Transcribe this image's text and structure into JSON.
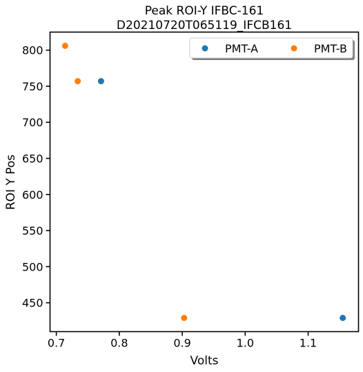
{
  "chart_data": {
    "type": "scatter",
    "title": "Peak ROI-Y IFBC-161",
    "subtitle": "D20210720T065119_IFCB161",
    "xlabel": "Volts",
    "ylabel": "ROI Y Pos",
    "xlim": [
      0.69,
      1.18
    ],
    "ylim": [
      410,
      825
    ],
    "xticks": [
      0.7,
      0.8,
      0.9,
      1.0,
      1.1
    ],
    "xtick_labels": [
      "0.7",
      "0.8",
      "0.9",
      "1.0",
      "1.1"
    ],
    "yticks": [
      450,
      500,
      550,
      600,
      650,
      700,
      750,
      800
    ],
    "ytick_labels": [
      "450",
      "500",
      "550",
      "600",
      "650",
      "700",
      "750",
      "800"
    ],
    "grid": false,
    "legend": {
      "placement": "top-right",
      "columns": 2,
      "shadow": true
    },
    "series": [
      {
        "name": "PMT-A",
        "color": "#1f77b4",
        "points": [
          [
            0.771,
            757
          ],
          [
            1.155,
            429
          ]
        ]
      },
      {
        "name": "PMT-B",
        "color": "#ff7f0e",
        "points": [
          [
            0.714,
            806
          ],
          [
            0.734,
            757
          ],
          [
            0.903,
            429
          ]
        ]
      }
    ]
  }
}
